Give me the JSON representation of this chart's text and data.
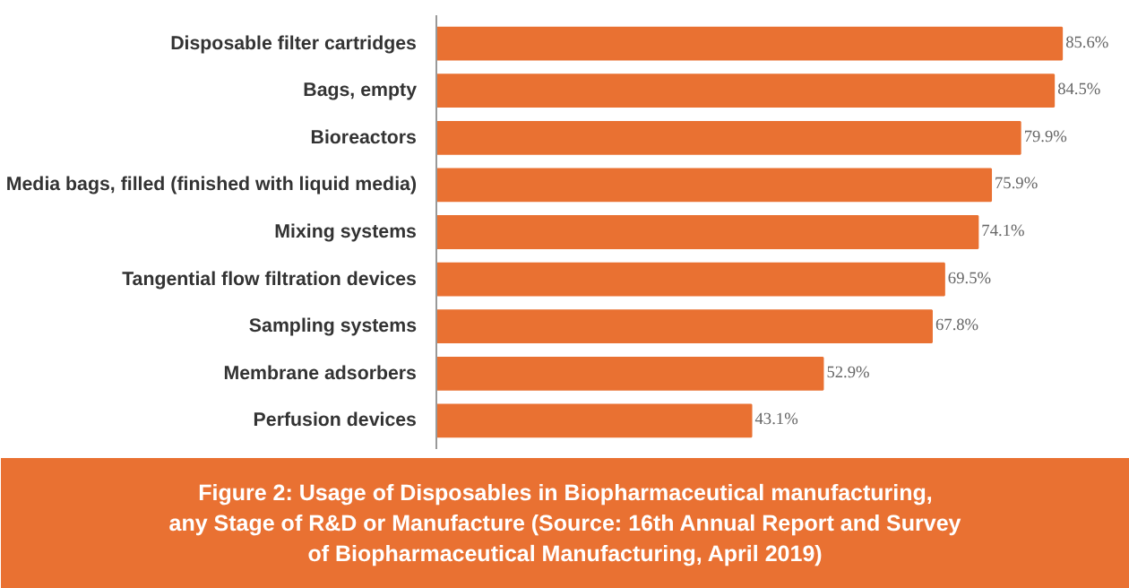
{
  "chart_data": {
    "type": "bar",
    "orientation": "horizontal",
    "title": "Figure 2: Usage of Disposables in Biopharmaceutical manufacturing,\nany Stage of R&D or Manufacture (Source: 16th Annual Report and Survey\nof Biopharmaceutical Manufacturing, April 2019)",
    "categories": [
      "Disposable filter cartridges",
      "Bags, empty",
      "Bioreactors",
      "Media bags, filled (finished with liquid media)",
      "Mixing systems",
      "Tangential flow filtration devices",
      "Sampling systems",
      "Membrane adsorbers",
      "Perfusion devices"
    ],
    "values": [
      85.6,
      84.5,
      79.9,
      75.9,
      74.1,
      69.5,
      67.8,
      52.9,
      43.1
    ],
    "value_labels": [
      "85.6%",
      "84.5%",
      "79.9%",
      "75.9%",
      "74.1%",
      "69.5%",
      "67.8%",
      "52.9%",
      "43.1%"
    ],
    "color": "#e97132",
    "grid": false
  }
}
